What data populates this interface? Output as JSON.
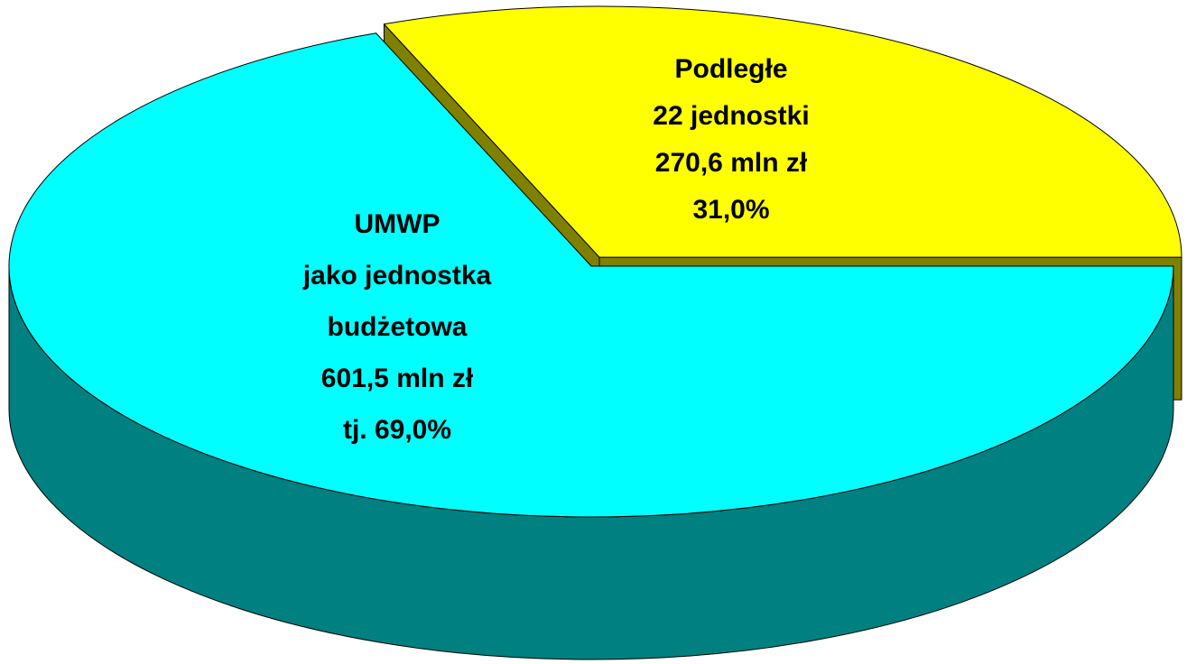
{
  "chart_data": {
    "type": "pie3d",
    "categories": [
      "UMWP",
      "Podległe"
    ],
    "descriptions": [
      [
        "jako jednostka",
        "budżetowa"
      ],
      [
        "22 jednostki"
      ]
    ],
    "values": [
      601.5,
      270.6
    ],
    "value_labels": [
      "601,5 mln zł",
      "270,6 mln zł"
    ],
    "percent": [
      69,
      31
    ],
    "percent_labels": [
      "tj. 69,0%",
      "31,0%"
    ],
    "colors": [
      "#00ffff",
      "#ffff00"
    ],
    "side_colors": [
      "#008080",
      "#808000"
    ]
  }
}
